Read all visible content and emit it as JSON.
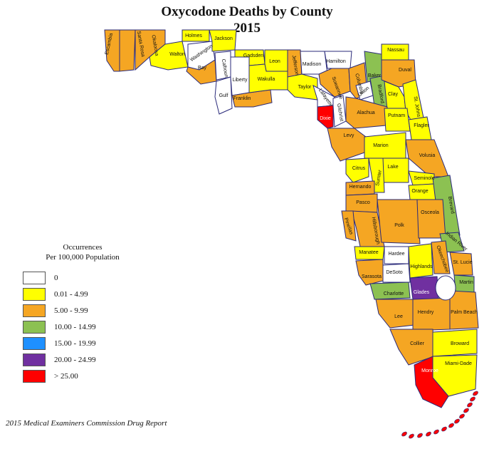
{
  "title_line1": "Oxycodone Deaths by County",
  "title_line2": "2015",
  "legend": {
    "title_line1": "Occurrences",
    "title_line2": "Per 100,000 Population",
    "items": [
      {
        "label": "0",
        "color": "#ffffff"
      },
      {
        "label": "0.01 - 4.99",
        "color": "#ffff00"
      },
      {
        "label": "5.00 - 9.99",
        "color": "#f5a623"
      },
      {
        "label": "10.00 - 14.99",
        "color": "#8cc152"
      },
      {
        "label": "15.00 - 19.99",
        "color": "#1e90ff"
      },
      {
        "label": "20.00 - 24.99",
        "color": "#7030a0"
      },
      {
        "label": "> 25.00",
        "color": "#ff0000"
      }
    ]
  },
  "source": "2015 Medical Examiners Commission Drug Report",
  "counties": [
    {
      "name": "Escambia",
      "category": 2
    },
    {
      "name": "Santa Rosa",
      "category": 2
    },
    {
      "name": "Okaloosa",
      "category": 2
    },
    {
      "name": "Walton",
      "category": 1
    },
    {
      "name": "Holmes",
      "category": 1
    },
    {
      "name": "Washington",
      "category": 0
    },
    {
      "name": "Jackson",
      "category": 1
    },
    {
      "name": "Bay",
      "category": 2
    },
    {
      "name": "Calhoun",
      "category": 0
    },
    {
      "name": "Gulf",
      "category": 0
    },
    {
      "name": "Liberty",
      "category": 0
    },
    {
      "name": "Gadsden",
      "category": 1
    },
    {
      "name": "Franklin",
      "category": 2
    },
    {
      "name": "Leon",
      "category": 1
    },
    {
      "name": "Wakulla",
      "category": 1
    },
    {
      "name": "Jefferson",
      "category": 2
    },
    {
      "name": "Madison",
      "category": 0
    },
    {
      "name": "Taylor",
      "category": 1
    },
    {
      "name": "Hamilton",
      "category": 0
    },
    {
      "name": "Suwannee",
      "category": 2
    },
    {
      "name": "Lafayette",
      "category": 0
    },
    {
      "name": "Dixie",
      "category": 6
    },
    {
      "name": "Gilchrist",
      "category": 0
    },
    {
      "name": "Columbia",
      "category": 2
    },
    {
      "name": "Baker",
      "category": 3
    },
    {
      "name": "Union",
      "category": 0
    },
    {
      "name": "Bradford",
      "category": 3
    },
    {
      "name": "Nassau",
      "category": 1
    },
    {
      "name": "Duval",
      "category": 2
    },
    {
      "name": "Clay",
      "category": 1
    },
    {
      "name": "St. Johns",
      "category": 1
    },
    {
      "name": "Alachua",
      "category": 2
    },
    {
      "name": "Putnam",
      "category": 1
    },
    {
      "name": "Flagler",
      "category": 1
    },
    {
      "name": "Levy",
      "category": 2
    },
    {
      "name": "Marion",
      "category": 1
    },
    {
      "name": "Volusia",
      "category": 2
    },
    {
      "name": "Citrus",
      "category": 1
    },
    {
      "name": "Lake",
      "category": 1
    },
    {
      "name": "Sumter",
      "category": 1
    },
    {
      "name": "Seminole",
      "category": 1
    },
    {
      "name": "Hernando",
      "category": 2
    },
    {
      "name": "Orange",
      "category": 1
    },
    {
      "name": "Brevard",
      "category": 3
    },
    {
      "name": "Pasco",
      "category": 2
    },
    {
      "name": "Hillsborough",
      "category": 2
    },
    {
      "name": "Pinellas",
      "category": 2
    },
    {
      "name": "Polk",
      "category": 2
    },
    {
      "name": "Osceola",
      "category": 2
    },
    {
      "name": "Indian River",
      "category": 3
    },
    {
      "name": "Manatee",
      "category": 1
    },
    {
      "name": "Hardee",
      "category": 0
    },
    {
      "name": "Highlands",
      "category": 1
    },
    {
      "name": "Okeechobee",
      "category": 2
    },
    {
      "name": "St. Lucie",
      "category": 2
    },
    {
      "name": "Sarasota",
      "category": 2
    },
    {
      "name": "DeSoto",
      "category": 0
    },
    {
      "name": "Martin",
      "category": 3
    },
    {
      "name": "Charlotte",
      "category": 3
    },
    {
      "name": "Glades",
      "category": 5
    },
    {
      "name": "Lee",
      "category": 2
    },
    {
      "name": "Hendry",
      "category": 2
    },
    {
      "name": "Palm Beach",
      "category": 2
    },
    {
      "name": "Collier",
      "category": 2
    },
    {
      "name": "Broward",
      "category": 1
    },
    {
      "name": "Miami-Dade",
      "category": 1
    },
    {
      "name": "Monroe",
      "category": 6
    }
  ]
}
